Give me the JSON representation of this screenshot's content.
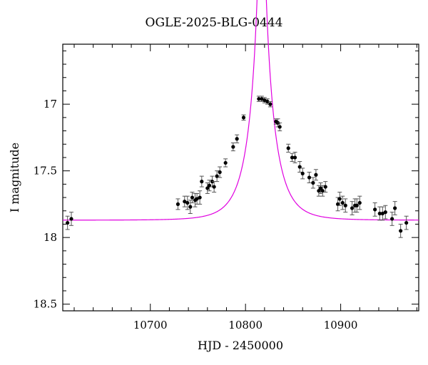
{
  "chart_data": {
    "type": "scatter",
    "title": "OGLE-2025-BLG-0444",
    "xlabel": "HJD - 2450000",
    "ylabel": "I magnitude",
    "xlim": [
      10608,
      10982
    ],
    "ylim": [
      18.55,
      16.55
    ],
    "y_inverted": true,
    "grid": false,
    "x_ticks": [
      10700,
      10800,
      10900
    ],
    "x_tick_labels": [
      "10700",
      "10800",
      "10900"
    ],
    "y_ticks": [
      17,
      17.5,
      18,
      18.5
    ],
    "y_tick_labels": [
      "17",
      "17.5",
      "18",
      "18.5"
    ],
    "colors": {
      "model": "#e000e0",
      "points": "#000000",
      "errorbars": "#555555"
    },
    "series": [
      {
        "kind": "observations",
        "points": [
          {
            "x": 10613,
            "y": 17.89,
            "err": 0.05
          },
          {
            "x": 10617,
            "y": 17.86,
            "err": 0.05
          },
          {
            "x": 10729,
            "y": 17.75,
            "err": 0.04
          },
          {
            "x": 10736,
            "y": 17.73,
            "err": 0.04
          },
          {
            "x": 10739,
            "y": 17.74,
            "err": 0.05
          },
          {
            "x": 10742,
            "y": 17.77,
            "err": 0.05
          },
          {
            "x": 10744,
            "y": 17.7,
            "err": 0.04
          },
          {
            "x": 10747,
            "y": 17.72,
            "err": 0.05
          },
          {
            "x": 10749,
            "y": 17.71,
            "err": 0.04
          },
          {
            "x": 10752,
            "y": 17.7,
            "err": 0.05
          },
          {
            "x": 10754,
            "y": 17.58,
            "err": 0.04
          },
          {
            "x": 10760,
            "y": 17.63,
            "err": 0.04
          },
          {
            "x": 10762,
            "y": 17.61,
            "err": 0.04
          },
          {
            "x": 10765,
            "y": 17.58,
            "err": 0.04
          },
          {
            "x": 10767,
            "y": 17.62,
            "err": 0.04
          },
          {
            "x": 10770,
            "y": 17.54,
            "err": 0.04
          },
          {
            "x": 10773,
            "y": 17.51,
            "err": 0.04
          },
          {
            "x": 10779,
            "y": 17.44,
            "err": 0.03
          },
          {
            "x": 10787,
            "y": 17.32,
            "err": 0.03
          },
          {
            "x": 10791,
            "y": 17.26,
            "err": 0.03
          },
          {
            "x": 10798,
            "y": 17.1,
            "err": 0.02
          },
          {
            "x": 10814,
            "y": 16.96,
            "err": 0.02
          },
          {
            "x": 10817,
            "y": 16.96,
            "err": 0.02
          },
          {
            "x": 10820,
            "y": 16.97,
            "err": 0.02
          },
          {
            "x": 10823,
            "y": 16.98,
            "err": 0.02
          },
          {
            "x": 10826,
            "y": 17.0,
            "err": 0.02
          },
          {
            "x": 10832,
            "y": 17.13,
            "err": 0.02
          },
          {
            "x": 10834,
            "y": 17.14,
            "err": 0.03
          },
          {
            "x": 10836,
            "y": 17.17,
            "err": 0.03
          },
          {
            "x": 10845,
            "y": 17.33,
            "err": 0.03
          },
          {
            "x": 10849,
            "y": 17.4,
            "err": 0.03
          },
          {
            "x": 10852,
            "y": 17.4,
            "err": 0.04
          },
          {
            "x": 10857,
            "y": 17.47,
            "err": 0.04
          },
          {
            "x": 10860,
            "y": 17.52,
            "err": 0.04
          },
          {
            "x": 10867,
            "y": 17.55,
            "err": 0.04
          },
          {
            "x": 10871,
            "y": 17.59,
            "err": 0.04
          },
          {
            "x": 10874,
            "y": 17.53,
            "err": 0.04
          },
          {
            "x": 10877,
            "y": 17.65,
            "err": 0.04
          },
          {
            "x": 10879,
            "y": 17.63,
            "err": 0.04
          },
          {
            "x": 10881,
            "y": 17.65,
            "err": 0.04
          },
          {
            "x": 10884,
            "y": 17.62,
            "err": 0.04
          },
          {
            "x": 10897,
            "y": 17.75,
            "err": 0.05
          },
          {
            "x": 10899,
            "y": 17.71,
            "err": 0.05
          },
          {
            "x": 10902,
            "y": 17.74,
            "err": 0.05
          },
          {
            "x": 10905,
            "y": 17.76,
            "err": 0.05
          },
          {
            "x": 10912,
            "y": 17.78,
            "err": 0.05
          },
          {
            "x": 10915,
            "y": 17.76,
            "err": 0.05
          },
          {
            "x": 10917,
            "y": 17.76,
            "err": 0.05
          },
          {
            "x": 10920,
            "y": 17.74,
            "err": 0.05
          },
          {
            "x": 10936,
            "y": 17.79,
            "err": 0.05
          },
          {
            "x": 10941,
            "y": 17.82,
            "err": 0.05
          },
          {
            "x": 10944,
            "y": 17.82,
            "err": 0.05
          },
          {
            "x": 10947,
            "y": 17.81,
            "err": 0.05
          },
          {
            "x": 10954,
            "y": 17.86,
            "err": 0.05
          },
          {
            "x": 10957,
            "y": 17.78,
            "err": 0.05
          },
          {
            "x": 10963,
            "y": 17.95,
            "err": 0.05
          },
          {
            "x": 10969,
            "y": 17.89,
            "err": 0.05
          }
        ]
      },
      {
        "kind": "model",
        "baseline_mag": 17.87,
        "t0": 10817,
        "u0": 0.078,
        "tE": 23.5
      }
    ]
  }
}
